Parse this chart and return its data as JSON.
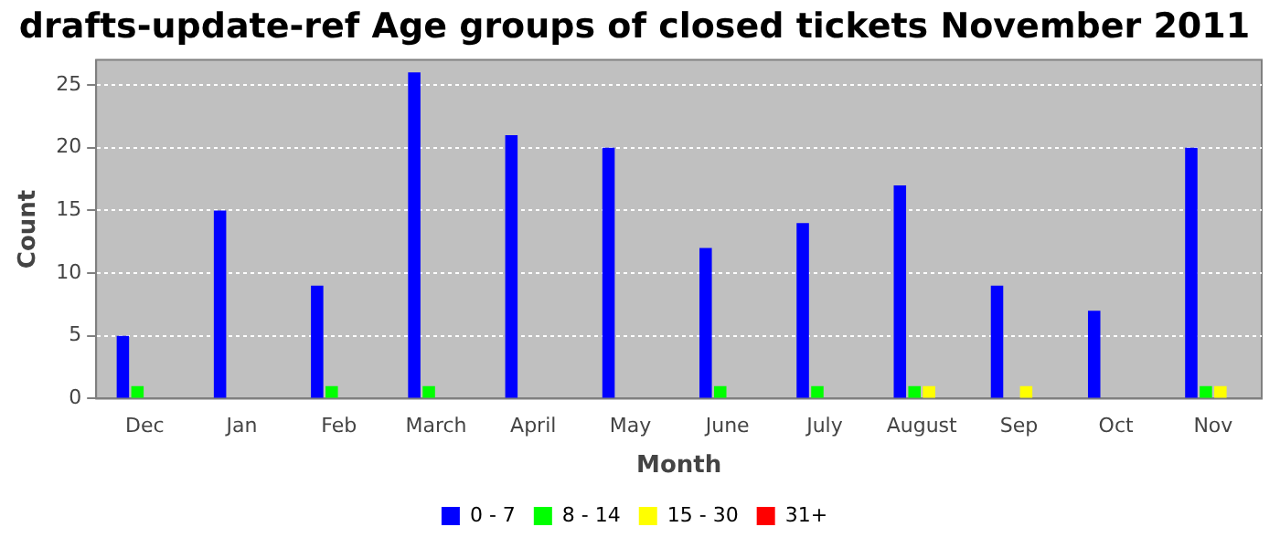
{
  "chart_data": {
    "type": "bar",
    "title": "drafts-update-ref Age groups of closed tickets November 2011",
    "xlabel": "Month",
    "ylabel": "Count",
    "categories": [
      "Dec",
      "Jan",
      "Feb",
      "March",
      "April",
      "May",
      "June",
      "July",
      "August",
      "Sep",
      "Oct",
      "Nov"
    ],
    "series": [
      {
        "name": "0 - 7",
        "color": "#0000ff",
        "values": [
          5,
          15,
          9,
          26,
          21,
          20,
          12,
          14,
          17,
          9,
          7,
          20
        ]
      },
      {
        "name": "8 - 14",
        "color": "#00ff00",
        "values": [
          1,
          0,
          1,
          1,
          0,
          0,
          1,
          1,
          1,
          0,
          0,
          1
        ]
      },
      {
        "name": "15 - 30",
        "color": "#ffff00",
        "values": [
          0,
          0,
          0,
          0,
          0,
          0,
          0,
          0,
          1,
          1,
          0,
          1
        ]
      },
      {
        "name": "31+",
        "color": "#ff0000",
        "values": [
          0,
          0,
          0,
          0,
          0,
          0,
          0,
          0,
          0,
          0,
          0,
          0
        ]
      }
    ],
    "ylim": [
      0,
      27
    ],
    "yticks": [
      0,
      5,
      10,
      15,
      20,
      25
    ],
    "grid": "y",
    "legend": "bottom"
  }
}
